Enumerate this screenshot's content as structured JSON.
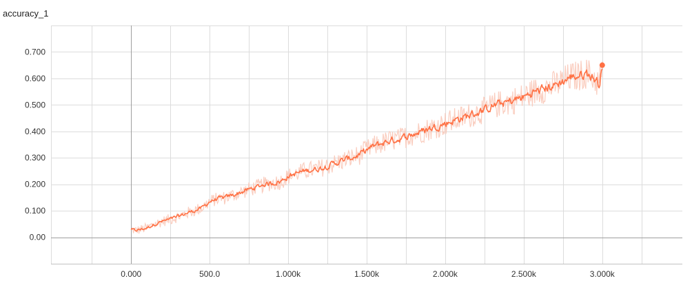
{
  "chart_data": {
    "type": "line",
    "title": "accuracy_1",
    "xlabel": "",
    "ylabel": "",
    "xlim": [
      -510,
      3510
    ],
    "ylim": [
      -0.1,
      0.8
    ],
    "grid": true,
    "x_ticks": [
      {
        "value": 0,
        "label": "0.000"
      },
      {
        "value": 500,
        "label": "500.0"
      },
      {
        "value": 1000,
        "label": "1.000k"
      },
      {
        "value": 1500,
        "label": "1.500k"
      },
      {
        "value": 2000,
        "label": "2.000k"
      },
      {
        "value": 2500,
        "label": "2.500k"
      },
      {
        "value": 3000,
        "label": "3.000k"
      }
    ],
    "x_grid_values": [
      -250,
      0,
      250,
      500,
      750,
      1000,
      1250,
      1500,
      1750,
      2000,
      2250,
      2500,
      2750,
      3000,
      3250
    ],
    "y_ticks": [
      {
        "value": 0.0,
        "label": "0.00"
      },
      {
        "value": 0.1,
        "label": "0.100"
      },
      {
        "value": 0.2,
        "label": "0.200"
      },
      {
        "value": 0.3,
        "label": "0.300"
      },
      {
        "value": 0.4,
        "label": "0.400"
      },
      {
        "value": 0.5,
        "label": "0.500"
      },
      {
        "value": 0.6,
        "label": "0.600"
      },
      {
        "value": 0.7,
        "label": "0.700"
      }
    ],
    "series": [
      {
        "name": "accuracy_1 (smoothed)",
        "color": "#ff7043",
        "raw_color": "#f9c8b8",
        "x": [
          0,
          25,
          50,
          100,
          150,
          200,
          250,
          300,
          350,
          400,
          450,
          500,
          550,
          600,
          650,
          700,
          750,
          800,
          850,
          900,
          950,
          1000,
          1050,
          1100,
          1150,
          1200,
          1250,
          1300,
          1350,
          1400,
          1450,
          1500,
          1550,
          1600,
          1650,
          1700,
          1750,
          1800,
          1850,
          1900,
          1950,
          2000,
          2050,
          2100,
          2150,
          2200,
          2250,
          2300,
          2350,
          2400,
          2450,
          2500,
          2550,
          2600,
          2650,
          2700,
          2750,
          2800,
          2850,
          2900,
          2950,
          2980,
          3000
        ],
        "y": [
          0.03,
          0.025,
          0.028,
          0.035,
          0.05,
          0.06,
          0.068,
          0.078,
          0.09,
          0.1,
          0.11,
          0.135,
          0.145,
          0.15,
          0.16,
          0.17,
          0.18,
          0.19,
          0.2,
          0.205,
          0.21,
          0.23,
          0.24,
          0.25,
          0.255,
          0.26,
          0.27,
          0.28,
          0.29,
          0.3,
          0.31,
          0.33,
          0.345,
          0.355,
          0.365,
          0.37,
          0.38,
          0.39,
          0.4,
          0.41,
          0.42,
          0.43,
          0.44,
          0.45,
          0.46,
          0.47,
          0.48,
          0.495,
          0.505,
          0.51,
          0.52,
          0.53,
          0.545,
          0.555,
          0.565,
          0.575,
          0.59,
          0.605,
          0.61,
          0.62,
          0.6,
          0.58,
          0.65
        ]
      }
    ]
  }
}
